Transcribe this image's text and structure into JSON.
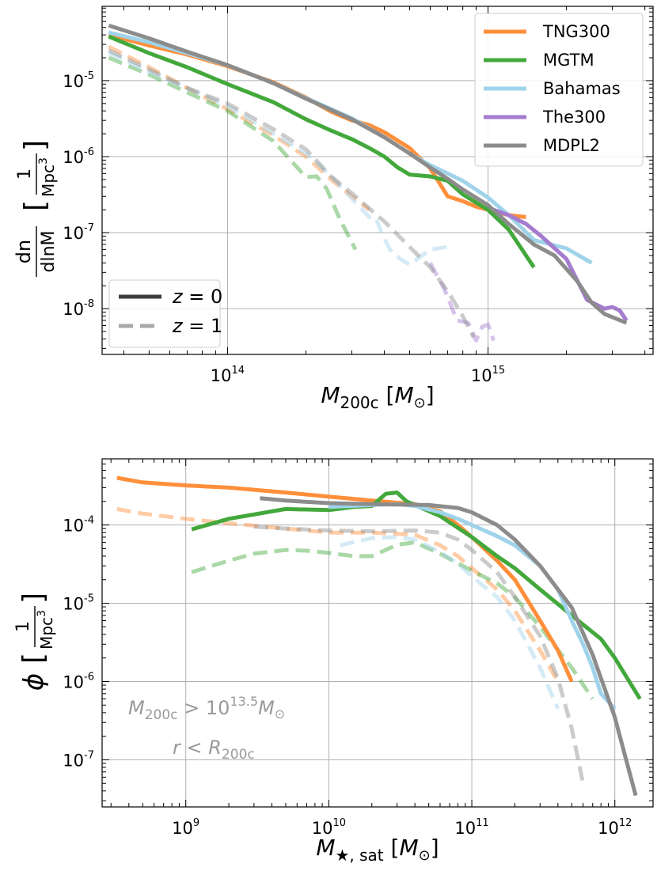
{
  "colors": {
    "TNG300": "#ff8f3a",
    "MGTM": "#43a83b",
    "Bahamas": "#9fd3ea",
    "The300": "#a57bcf",
    "MDPL2": "#8c8c8c",
    "annotation": "#9a9a9a",
    "legend_line": "#3d3d3d"
  },
  "chart_data": [
    {
      "type": "line",
      "log_x": true,
      "log_y": true,
      "xlim": [
        33000000000000.0,
        4300000000000000.0
      ],
      "ylim": [
        2.5e-09,
        9.5e-05
      ],
      "xticks": [
        {
          "base": "10",
          "exp": "14",
          "value": 100000000000000.0
        },
        {
          "base": "10",
          "exp": "15",
          "value": 1000000000000000.0
        }
      ],
      "yticks": [
        {
          "base": "10",
          "exp": "-8",
          "value": 1e-08
        },
        {
          "base": "10",
          "exp": "-7",
          "value": 1e-07
        },
        {
          "base": "10",
          "exp": "-6",
          "value": 1e-06
        },
        {
          "base": "10",
          "exp": "-5",
          "value": 1e-05
        }
      ],
      "xlabel": {
        "main": "M",
        "sub": "200c",
        "bracket_open": " [",
        "unit": "M",
        "unit_sub": "⊙",
        "bracket_close": "]"
      },
      "ylabel": {
        "num": "dn",
        "den": "dlnM",
        "bracket_open": "[",
        "unit_num": "1",
        "unit_den": "Mpc",
        "unit_exp": "3",
        "bracket_close": "]"
      },
      "legend_series": [
        "TNG300",
        "MGTM",
        "Bahamas",
        "The300",
        "MDPL2"
      ],
      "legend_z": [
        {
          "label": "z = 0",
          "style": "solid"
        },
        {
          "label": "z = 1",
          "style": "dashed"
        }
      ],
      "series": [
        {
          "name": "TNG300",
          "z": 0,
          "x": [
            35000000000000.0,
            50000000000000.0,
            70000000000000.0,
            100000000000000.0,
            150000000000000.0,
            200000000000000.0,
            250000000000000.0,
            300000000000000.0,
            350000000000000.0,
            400000000000000.0,
            500000000000000.0,
            600000000000000.0,
            700000000000000.0,
            800000000000000.0,
            900000000000000.0,
            1000000000000000.0,
            1200000000000000.0,
            1400000000000000.0
          ],
          "y": [
            4e-05,
            2.9e-05,
            2.2e-05,
            1.55e-05,
            9.5e-06,
            6e-06,
            3.9e-06,
            3e-06,
            2.6e-06,
            2.1e-06,
            1.3e-06,
            7e-07,
            3e-07,
            2.6e-07,
            2.2e-07,
            2e-07,
            1.7e-07,
            1.6e-07
          ]
        },
        {
          "name": "MGTM",
          "z": 0,
          "x": [
            35000000000000.0,
            50000000000000.0,
            70000000000000.0,
            100000000000000.0,
            150000000000000.0,
            200000000000000.0,
            250000000000000.0,
            300000000000000.0,
            350000000000000.0,
            400000000000000.0,
            450000000000000.0,
            500000000000000.0,
            600000000000000.0,
            700000000000000.0,
            800000000000000.0,
            1000000000000000.0,
            1200000000000000.0,
            1500000000000000.0
          ],
          "y": [
            3.8e-05,
            2.3e-05,
            1.5e-05,
            9e-06,
            5.2e-06,
            3.1e-06,
            2.2e-06,
            1.7e-06,
            1.3e-06,
            1e-06,
            7.2e-07,
            5.8e-07,
            5.5e-07,
            4.8e-07,
            3.2e-07,
            2e-07,
            1.1e-07,
            3.5e-08
          ]
        },
        {
          "name": "Bahamas",
          "z": 0,
          "x": [
            35000000000000.0,
            50000000000000.0,
            70000000000000.0,
            100000000000000.0,
            150000000000000.0,
            200000000000000.0,
            300000000000000.0,
            400000000000000.0,
            500000000000000.0,
            600000000000000.0,
            700000000000000.0,
            800000000000000.0,
            1000000000000000.0,
            1200000000000000.0,
            1500000000000000.0,
            2000000000000000.0,
            2500000000000000.0
          ],
          "y": [
            4.3e-05,
            3.2e-05,
            2.3e-05,
            1.6e-05,
            9.2e-06,
            5.9e-06,
            3.2e-06,
            1.8e-06,
            1.1e-06,
            7.7e-07,
            6e-07,
            4.8e-07,
            2.9e-07,
            1.7e-07,
            8e-08,
            6.2e-08,
            4e-08
          ]
        },
        {
          "name": "The300",
          "z": 0,
          "x": [
            1050000000000000.0,
            1200000000000000.0,
            1400000000000000.0,
            1600000000000000.0,
            2000000000000000.0,
            2400000000000000.0,
            2800000000000000.0,
            3000000000000000.0,
            3200000000000000.0,
            3400000000000000.0
          ],
          "y": [
            2e-07,
            1.7e-07,
            1.3e-07,
            9e-08,
            4.5e-08,
            1.3e-08,
            1e-08,
            1.05e-08,
            9.5e-09,
            7e-09
          ]
        },
        {
          "name": "MDPL2",
          "z": 0,
          "x": [
            35000000000000.0,
            50000000000000.0,
            70000000000000.0,
            100000000000000.0,
            150000000000000.0,
            200000000000000.0,
            300000000000000.0,
            400000000000000.0,
            500000000000000.0,
            600000000000000.0,
            700000000000000.0,
            800000000000000.0,
            1000000000000000.0,
            1200000000000000.0,
            1500000000000000.0,
            1800000000000000.0,
            2200000000000000.0,
            2500000000000000.0,
            2800000000000000.0,
            3400000000000000.0
          ],
          "y": [
            5.3e-05,
            3.6e-05,
            2.4e-05,
            1.6e-05,
            9.3e-06,
            5.8e-06,
            3.1e-06,
            1.8e-06,
            1.1e-06,
            7.2e-07,
            5.1e-07,
            3.7e-07,
            2.3e-07,
            1.3e-07,
            7e-08,
            5e-08,
            2.3e-08,
            1.2e-08,
            8.5e-09,
            6.5e-09
          ]
        },
        {
          "name": "TNG300",
          "z": 1,
          "x": [
            35000000000000.0,
            50000000000000.0,
            70000000000000.0,
            100000000000000.0,
            150000000000000.0,
            200000000000000.0,
            250000000000000.0,
            300000000000000.0,
            350000000000000.0
          ],
          "y": [
            2.8e-05,
            1.5e-05,
            8e-06,
            4.2e-06,
            1.9e-06,
            1e-06,
            5e-07,
            3e-07,
            2e-07
          ]
        },
        {
          "name": "MGTM",
          "z": 1,
          "x": [
            35000000000000.0,
            50000000000000.0,
            70000000000000.0,
            100000000000000.0,
            150000000000000.0,
            180000000000000.0,
            200000000000000.0,
            220000000000000.0,
            240000000000000.0,
            270000000000000.0,
            310000000000000.0
          ],
          "y": [
            2e-05,
            1.2e-05,
            7e-06,
            4e-06,
            1.6e-06,
            8e-07,
            5.4e-07,
            5.5e-07,
            3.8e-07,
            1.5e-07,
            6e-08
          ]
        },
        {
          "name": "Bahamas",
          "z": 1,
          "x": [
            35000000000000.0,
            50000000000000.0,
            70000000000000.0,
            100000000000000.0,
            150000000000000.0,
            200000000000000.0,
            250000000000000.0,
            300000000000000.0,
            350000000000000.0,
            370000000000000.0,
            390000000000000.0,
            420000000000000.0,
            460000000000000.0,
            500000000000000.0,
            600000000000000.0,
            700000000000000.0
          ],
          "y": [
            2.3e-05,
            1.3e-05,
            8e-06,
            4.6e-06,
            2e-06,
            1.1e-06,
            5.5e-07,
            2.8e-07,
            1.6e-07,
            1.6e-07,
            1e-07,
            6e-08,
            4.5e-08,
            3.8e-08,
            6e-08,
            6.5e-08
          ]
        },
        {
          "name": "The300",
          "z": 1,
          "x": [
            600000000000000.0,
            680000000000000.0,
            760000000000000.0,
            840000000000000.0,
            900000000000000.0,
            950000000000000.0,
            1000000000000000.0,
            1050000000000000.0
          ],
          "y": [
            4e-08,
            1.8e-08,
            7e-09,
            6.5e-09,
            3.8e-09,
            5.8e-09,
            6.2e-09,
            3.8e-09
          ]
        },
        {
          "name": "MDPL2",
          "z": 1,
          "x": [
            35000000000000.0,
            50000000000000.0,
            70000000000000.0,
            100000000000000.0,
            150000000000000.0,
            200000000000000.0,
            250000000000000.0,
            300000000000000.0,
            400000000000000.0,
            500000000000000.0,
            600000000000000.0,
            700000000000000.0,
            800000000000000.0,
            880000000000000.0
          ],
          "y": [
            2.5e-05,
            1.4e-05,
            8e-06,
            5e-06,
            2.3e-06,
            1.25e-06,
            5.5e-07,
            3.3e-07,
            1.4e-07,
            6.5e-08,
            3.5e-08,
            1.7e-08,
            8e-09,
            4.2e-09
          ]
        }
      ]
    },
    {
      "type": "line",
      "log_x": true,
      "log_y": true,
      "xlim": [
        260000000.0,
        1850000000000.0
      ],
      "ylim": [
        2.5e-08,
        0.0007
      ],
      "xticks": [
        {
          "base": "10",
          "exp": "9",
          "value": 1000000000.0
        },
        {
          "base": "10",
          "exp": "10",
          "value": 10000000000.0
        },
        {
          "base": "10",
          "exp": "11",
          "value": 100000000000.0
        },
        {
          "base": "10",
          "exp": "12",
          "value": 1000000000000.0
        }
      ],
      "yticks": [
        {
          "base": "10",
          "exp": "-7",
          "value": 1e-07
        },
        {
          "base": "10",
          "exp": "-6",
          "value": 1e-06
        },
        {
          "base": "10",
          "exp": "-5",
          "value": 1e-05
        },
        {
          "base": "10",
          "exp": "-4",
          "value": 0.0001
        }
      ],
      "xlabel": {
        "main": "M",
        "sub": "★, sat",
        "bracket_open": " [",
        "unit": "M",
        "unit_sub": "⊙",
        "bracket_close": "]"
      },
      "ylabel": {
        "sym": "ϕ",
        "bracket_open": "[",
        "unit_num": "1",
        "unit_den": "Mpc",
        "unit_exp": "3",
        "bracket_close": "]"
      },
      "annotations": [
        {
          "text": "M",
          "sub": "200c",
          "rel": " > ",
          "pow_base": "10",
          "pow_exp": "13.5",
          "unit": "M",
          "unit_sub": "⊙"
        },
        {
          "text": "r",
          "rel": " < ",
          "unit": "R",
          "unit_sub": "200c"
        }
      ],
      "series": [
        {
          "name": "TNG300",
          "z": 0,
          "x": [
            330000000.0,
            500000000.0,
            1000000000.0,
            2000000000.0,
            5000000000.0,
            10000000000.0,
            20000000000.0,
            40000000000.0,
            60000000000.0,
            80000000000.0,
            100000000000.0,
            150000000000.0,
            200000000000.0,
            300000000000.0,
            400000000000.0,
            500000000000.0
          ],
          "y": [
            0.0004,
            0.00035,
            0.00032,
            0.0003,
            0.00026,
            0.00023,
            0.000205,
            0.000185,
            0.00015,
            0.0001,
            7e-05,
            3.5e-05,
            2e-05,
            6e-06,
            2.5e-06,
            1e-06
          ]
        },
        {
          "name": "MGTM",
          "z": 0,
          "x": [
            1100000000.0,
            2000000000.0,
            5000000000.0,
            10000000000.0,
            15000000000.0,
            20000000000.0,
            25000000000.0,
            30000000000.0,
            35000000000.0,
            40000000000.0,
            60000000000.0,
            100000000000.0,
            150000000000.0,
            200000000000.0,
            300000000000.0,
            500000000000.0,
            800000000000.0,
            1000000000000.0,
            1500000000000.0
          ],
          "y": [
            8.8e-05,
            0.00012,
            0.00016,
            0.000155,
            0.00017,
            0.000175,
            0.00025,
            0.00026,
            0.0002,
            0.00018,
            0.00013,
            7e-05,
            4e-05,
            2.8e-05,
            1.5e-05,
            7e-06,
            3.5e-06,
            2e-06,
            6e-07
          ]
        },
        {
          "name": "Bahamas",
          "z": 0,
          "x": [
            10000000000.0,
            20000000000.0,
            30000000000.0,
            40000000000.0,
            60000000000.0,
            80000000000.0,
            100000000000.0,
            150000000000.0,
            200000000000.0,
            300000000000.0,
            400000000000.0,
            500000000000.0,
            600000000000.0,
            700000000000.0,
            800000000000.0,
            1000000000000.0
          ],
          "y": [
            0.00017,
            0.00018,
            0.000185,
            0.000175,
            0.000145,
            0.00012,
            0.0001,
            7.2e-05,
            5.5e-05,
            3e-05,
            1.5e-05,
            6e-06,
            3e-06,
            1.5e-06,
            7e-07,
            4.5e-07
          ]
        },
        {
          "name": "MDPL2",
          "z": 0,
          "x": [
            3300000000.0,
            5000000000.0,
            10000000000.0,
            20000000000.0,
            50000000000.0,
            80000000000.0,
            100000000000.0,
            150000000000.0,
            200000000000.0,
            300000000000.0,
            500000000000.0,
            700000000000.0,
            1000000000000.0,
            1200000000000.0,
            1400000000000.0
          ],
          "y": [
            0.00022,
            0.000205,
            0.00019,
            0.000185,
            0.00018,
            0.000165,
            0.000145,
            0.0001,
            6.5e-05,
            3e-05,
            8.8e-06,
            2.2e-06,
            3.5e-07,
            1e-07,
            3.5e-08
          ]
        },
        {
          "name": "TNG300",
          "z": 1,
          "x": [
            330000000.0,
            500000000.0,
            1000000000.0,
            2000000000.0,
            5000000000.0,
            10000000000.0,
            20000000000.0,
            40000000000.0,
            60000000000.0,
            80000000000.0,
            100000000000.0,
            150000000000.0,
            200000000000.0,
            300000000000.0,
            400000000000.0
          ],
          "y": [
            0.00016,
            0.00014,
            0.00012,
            0.000105,
            9e-05,
            8e-05,
            8e-05,
            7.5e-05,
            5.5e-05,
            4e-05,
            2.8e-05,
            1.5e-05,
            8e-06,
            2.5e-06,
            1e-06
          ]
        },
        {
          "name": "MGTM",
          "z": 1,
          "x": [
            1100000000.0,
            2000000000.0,
            3000000000.0,
            5000000000.0,
            7000000000.0,
            10000000000.0,
            15000000000.0,
            20000000000.0,
            25000000000.0,
            30000000000.0,
            40000000000.0,
            60000000000.0,
            100000000000.0,
            150000000000.0,
            200000000000.0,
            300000000000.0,
            500000000000.0,
            700000000000.0
          ],
          "y": [
            2.5e-05,
            3.5e-05,
            4.3e-05,
            4.8e-05,
            4.7e-05,
            4.4e-05,
            4e-05,
            4e-05,
            4.8e-05,
            5.6e-05,
            6e-05,
            4.3e-05,
            2.6e-05,
            1.8e-05,
            1.2e-05,
            5e-06,
            1.5e-06,
            6e-07
          ]
        },
        {
          "name": "Bahamas",
          "z": 1,
          "x": [
            12000000000.0,
            20000000000.0,
            30000000000.0,
            40000000000.0,
            60000000000.0,
            80000000000.0,
            100000000000.0,
            150000000000.0,
            200000000000.0,
            300000000000.0,
            400000000000.0
          ],
          "y": [
            5.5e-05,
            6.8e-05,
            7e-05,
            6.5e-05,
            4.5e-05,
            3.2e-05,
            2.2e-05,
            1.2e-05,
            6e-06,
            1.5e-06,
            4.5e-07
          ]
        },
        {
          "name": "MDPL2",
          "z": 1,
          "x": [
            3000000000.0,
            5000000000.0,
            10000000000.0,
            20000000000.0,
            40000000000.0,
            60000000000.0,
            80000000000.0,
            100000000000.0,
            150000000000.0,
            200000000000.0,
            300000000000.0,
            400000000000.0,
            500000000000.0,
            600000000000.0
          ],
          "y": [
            9.5e-05,
            9e-05,
            8.5e-05,
            8.3e-05,
            8.5e-05,
            8e-05,
            6.5e-05,
            4.8e-05,
            2.5e-05,
            1.2e-05,
            3.8e-06,
            1.1e-06,
            2.5e-07,
            5e-08
          ]
        }
      ]
    }
  ]
}
